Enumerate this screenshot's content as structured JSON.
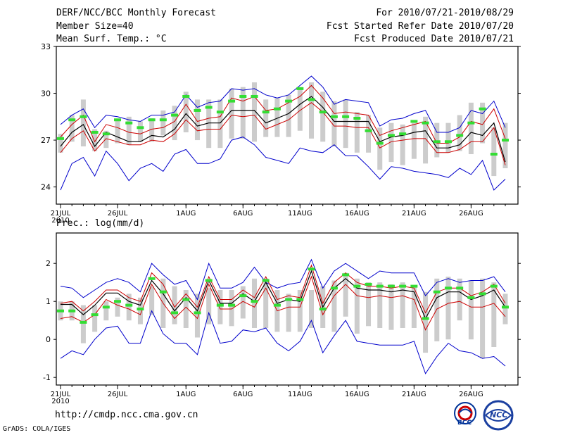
{
  "header": {
    "title": "DERF/NCC/BCC Monthly Forecast",
    "member_size": "Member Size=40",
    "variable": "Mean Surf. Temp.: °C",
    "period": "For 2010/07/21-2010/08/29",
    "started": "Fcst Started Refer Date 2010/07/20",
    "produced": "Fcst Produced Date 2010/07/21"
  },
  "lower_title": "Prec.: log(mm/d)",
  "footer": {
    "url": "http://cmdp.ncc.cma.gov.cn",
    "grads": "GrADS: COLA/IGES",
    "logo1_text": "BCC",
    "logo2_text": "NCC"
  },
  "colors": {
    "max_min": "#0000cc",
    "spread": "#cc0000",
    "mean": "#000000",
    "obs": "#33dd33",
    "box": "#cccccc"
  },
  "chart_data": [
    {
      "type": "line",
      "title": "Mean Surf. Temp.: °C",
      "xlabel": "",
      "ylabel": "",
      "ylim": [
        22.9,
        33
      ],
      "yticks": [
        24,
        27,
        30,
        33
      ],
      "xticks": [
        "21JUL\n2010",
        "26JUL",
        "1AUG",
        "6AUG",
        "11AUG",
        "16AUG",
        "21AUG",
        "26AUG"
      ],
      "x": [
        1,
        2,
        3,
        4,
        5,
        6,
        7,
        8,
        9,
        10,
        11,
        12,
        13,
        14,
        15,
        16,
        17,
        18,
        19,
        20,
        21,
        22,
        23,
        24,
        25,
        26,
        27,
        28,
        29,
        30,
        31,
        32,
        33,
        34,
        35,
        36,
        37,
        38,
        39,
        40
      ],
      "series": [
        {
          "name": "max",
          "values": [
            28.0,
            28.6,
            29.0,
            27.8,
            28.6,
            28.5,
            28.3,
            28.2,
            28.6,
            28.6,
            28.8,
            29.9,
            29.1,
            29.4,
            29.5,
            30.3,
            30.2,
            30.3,
            29.9,
            29.7,
            29.9,
            30.5,
            31.1,
            30.4,
            29.3,
            29.6,
            29.5,
            29.4,
            27.9,
            28.3,
            28.4,
            28.7,
            28.9,
            27.5,
            27.5,
            27.8,
            28.9,
            28.7,
            29.5,
            27.8
          ]
        },
        {
          "name": "upper",
          "values": [
            27.2,
            28.0,
            28.6,
            26.9,
            28.0,
            27.8,
            27.5,
            27.4,
            27.7,
            27.8,
            28.2,
            29.3,
            28.2,
            28.4,
            28.5,
            29.7,
            29.5,
            29.8,
            28.9,
            29.0,
            29.4,
            29.8,
            30.5,
            29.7,
            28.7,
            28.8,
            28.7,
            28.6,
            27.3,
            27.6,
            27.8,
            28.0,
            28.2,
            26.8,
            26.8,
            27.2,
            28.2,
            28.0,
            29.0,
            27.1
          ]
        },
        {
          "name": "mean",
          "values": [
            26.6,
            27.5,
            28.0,
            26.6,
            27.5,
            27.2,
            26.9,
            26.9,
            27.3,
            27.2,
            27.7,
            28.7,
            27.9,
            28.1,
            28.1,
            28.9,
            28.9,
            28.9,
            28.1,
            28.4,
            28.7,
            29.3,
            29.8,
            29.1,
            28.2,
            28.2,
            28.2,
            28.2,
            26.9,
            27.2,
            27.3,
            27.5,
            27.6,
            26.5,
            26.5,
            26.7,
            27.5,
            27.3,
            28.1,
            25.6
          ]
        },
        {
          "name": "lower",
          "values": [
            26.2,
            27.1,
            27.6,
            26.3,
            27.1,
            26.9,
            26.7,
            26.7,
            27.0,
            26.9,
            27.4,
            28.3,
            27.6,
            27.7,
            27.7,
            28.6,
            28.5,
            28.6,
            27.7,
            28.0,
            28.3,
            28.9,
            29.4,
            28.8,
            27.9,
            27.9,
            27.8,
            27.8,
            26.5,
            26.9,
            27.0,
            27.1,
            27.1,
            26.2,
            26.2,
            26.4,
            26.9,
            26.9,
            27.8,
            25.4
          ]
        },
        {
          "name": "min",
          "values": [
            23.8,
            25.5,
            25.9,
            24.7,
            26.3,
            25.5,
            24.4,
            25.2,
            25.5,
            25.0,
            26.1,
            26.4,
            25.5,
            25.5,
            25.8,
            27.0,
            27.2,
            26.7,
            25.9,
            25.7,
            25.5,
            26.5,
            26.3,
            26.2,
            26.7,
            26.0,
            26.0,
            25.3,
            24.5,
            25.3,
            25.2,
            25.0,
            24.9,
            24.8,
            24.6,
            25.2,
            24.8,
            25.7,
            23.8,
            24.5
          ]
        },
        {
          "name": "obs",
          "values": [
            27.1,
            28.3,
            28.5,
            27.5,
            27.4,
            28.3,
            28.1,
            27.8,
            28.3,
            28.3,
            28.6,
            29.8,
            28.9,
            29.1,
            28.8,
            29.5,
            29.8,
            29.8,
            28.8,
            29.0,
            29.5,
            30.3,
            29.6,
            28.8,
            28.5,
            28.5,
            28.4,
            27.6,
            26.8,
            27.3,
            27.4,
            28.2,
            28.1,
            26.9,
            26.9,
            27.3,
            28.1,
            29.0,
            26.1,
            27.0
          ]
        },
        {
          "name": "box_high",
          "values": [
            27.4,
            28.6,
            29.6,
            27.7,
            27.6,
            28.3,
            28.5,
            28.2,
            28.4,
            28.9,
            29.2,
            30.1,
            29.6,
            29.6,
            29.6,
            30.3,
            30.4,
            30.7,
            29.6,
            29.7,
            29.9,
            30.4,
            30.7,
            30.1,
            29.5,
            29.6,
            28.8,
            28.6,
            27.8,
            28.1,
            28.0,
            28.1,
            28.5,
            28.1,
            28.1,
            28.6,
            29.4,
            29.4,
            27.8,
            28.1
          ]
        },
        {
          "name": "box_low",
          "values": [
            26.2,
            26.9,
            26.6,
            26.3,
            26.5,
            26.8,
            26.7,
            26.9,
            26.9,
            27.3,
            27.0,
            27.5,
            27.0,
            26.5,
            26.5,
            27.1,
            27.1,
            26.9,
            27.2,
            27.2,
            27.2,
            27.6,
            27.1,
            26.9,
            26.6,
            26.5,
            26.2,
            26.2,
            25.1,
            25.6,
            25.4,
            25.8,
            25.5,
            25.9,
            26.2,
            26.3,
            26.1,
            26.8,
            24.7,
            25.2
          ]
        }
      ]
    },
    {
      "type": "line",
      "title": "Prec.: log(mm/d)",
      "xlabel": "",
      "ylabel": "",
      "ylim": [
        -1.2,
        2.8
      ],
      "yticks": [
        -1,
        0,
        1,
        2
      ],
      "xticks": [
        "21JUL\n2010",
        "26JUL",
        "1AUG",
        "6AUG",
        "11AUG",
        "16AUG",
        "21AUG",
        "26AUG"
      ],
      "x": [
        1,
        2,
        3,
        4,
        5,
        6,
        7,
        8,
        9,
        10,
        11,
        12,
        13,
        14,
        15,
        16,
        17,
        18,
        19,
        20,
        21,
        22,
        23,
        24,
        25,
        26,
        27,
        28,
        29,
        30,
        31,
        32,
        33,
        34,
        35,
        36,
        37,
        38,
        39,
        40
      ],
      "series": [
        {
          "name": "max",
          "values": [
            1.4,
            1.35,
            1.1,
            1.3,
            1.5,
            1.6,
            1.5,
            1.25,
            2.0,
            1.7,
            1.45,
            1.55,
            1.05,
            2.0,
            1.35,
            1.35,
            1.5,
            1.9,
            1.5,
            1.35,
            1.45,
            1.5,
            2.1,
            1.35,
            1.8,
            2.0,
            1.8,
            1.6,
            1.8,
            1.75,
            1.75,
            1.75,
            1.15,
            1.5,
            1.6,
            1.5,
            1.55,
            1.55,
            1.65,
            1.25
          ]
        },
        {
          "name": "upper",
          "values": [
            0.95,
            1.0,
            0.75,
            1.0,
            1.3,
            1.3,
            1.1,
            1.0,
            1.75,
            1.45,
            0.85,
            1.2,
            0.85,
            1.65,
            1.05,
            1.05,
            1.3,
            1.1,
            1.65,
            1.05,
            1.15,
            1.1,
            1.95,
            0.95,
            1.5,
            1.75,
            1.5,
            1.4,
            1.4,
            1.35,
            1.4,
            1.35,
            0.7,
            1.25,
            1.35,
            1.35,
            1.15,
            1.25,
            1.45,
            0.95
          ]
        },
        {
          "name": "mean",
          "values": [
            0.92,
            0.92,
            0.65,
            0.9,
            1.22,
            1.22,
            1.0,
            0.9,
            1.55,
            1.2,
            0.75,
            1.1,
            0.75,
            1.55,
            0.95,
            0.95,
            1.2,
            1.0,
            1.5,
            0.95,
            1.05,
            1.0,
            1.8,
            0.85,
            1.35,
            1.6,
            1.35,
            1.3,
            1.3,
            1.25,
            1.3,
            1.25,
            0.55,
            1.1,
            1.25,
            1.25,
            1.05,
            1.15,
            1.3,
            0.85
          ]
        },
        {
          "name": "lower",
          "values": [
            0.55,
            0.6,
            0.45,
            0.65,
            1.05,
            0.9,
            0.8,
            0.65,
            1.45,
            0.95,
            0.55,
            0.85,
            0.55,
            1.45,
            0.8,
            0.8,
            1.0,
            0.85,
            1.35,
            0.75,
            0.85,
            0.85,
            1.65,
            0.65,
            1.15,
            1.45,
            1.15,
            1.1,
            1.15,
            1.1,
            1.15,
            1.05,
            0.25,
            0.8,
            0.95,
            1.0,
            0.85,
            0.85,
            0.95,
            0.6
          ]
        },
        {
          "name": "min",
          "values": [
            -0.5,
            -0.3,
            -0.4,
            0.0,
            0.3,
            0.35,
            -0.1,
            -0.1,
            0.75,
            0.15,
            -0.1,
            -0.1,
            -0.4,
            0.7,
            -0.1,
            -0.05,
            0.25,
            0.2,
            0.3,
            -0.1,
            -0.3,
            -0.05,
            0.5,
            -0.35,
            0.1,
            0.5,
            -0.05,
            -0.1,
            -0.15,
            -0.15,
            -0.15,
            -0.05,
            -0.9,
            -0.45,
            -0.1,
            -0.3,
            -0.35,
            -0.5,
            -0.45,
            -0.7
          ]
        },
        {
          "name": "obs",
          "values": [
            0.75,
            0.75,
            0.45,
            0.65,
            0.85,
            1.0,
            0.9,
            0.8,
            1.6,
            1.25,
            0.7,
            1.05,
            0.7,
            1.55,
            0.9,
            0.9,
            1.15,
            1.0,
            1.55,
            0.9,
            1.05,
            1.05,
            1.85,
            0.8,
            1.35,
            1.7,
            1.4,
            1.45,
            1.4,
            1.4,
            1.4,
            1.4,
            0.55,
            1.25,
            1.35,
            1.35,
            1.1,
            1.2,
            1.4,
            0.85
          ]
        },
        {
          "name": "box_high",
          "values": [
            1.0,
            1.0,
            0.9,
            0.9,
            1.0,
            1.1,
            1.2,
            1.1,
            1.4,
            1.6,
            1.4,
            1.3,
            1.2,
            1.35,
            1.3,
            1.3,
            1.4,
            1.6,
            1.6,
            1.3,
            1.2,
            1.3,
            1.3,
            1.4,
            1.55,
            1.75,
            1.6,
            1.5,
            1.5,
            1.45,
            1.5,
            1.4,
            1.25,
            1.6,
            1.65,
            1.6,
            1.55,
            1.6,
            1.5,
            1.2
          ]
        },
        {
          "name": "box_low",
          "values": [
            0.5,
            0.5,
            -0.1,
            0.2,
            0.5,
            0.6,
            0.5,
            0.4,
            0.65,
            0.3,
            0.4,
            0.3,
            0.05,
            0.4,
            0.4,
            0.35,
            0.55,
            0.3,
            0.3,
            0.2,
            0.2,
            0.2,
            0.3,
            0.3,
            0.2,
            0.6,
            0.15,
            0.35,
            0.3,
            0.25,
            0.3,
            0.3,
            -0.35,
            -0.05,
            0.0,
            0.5,
            0.0,
            -0.5,
            -0.2,
            0.4
          ]
        }
      ]
    }
  ]
}
